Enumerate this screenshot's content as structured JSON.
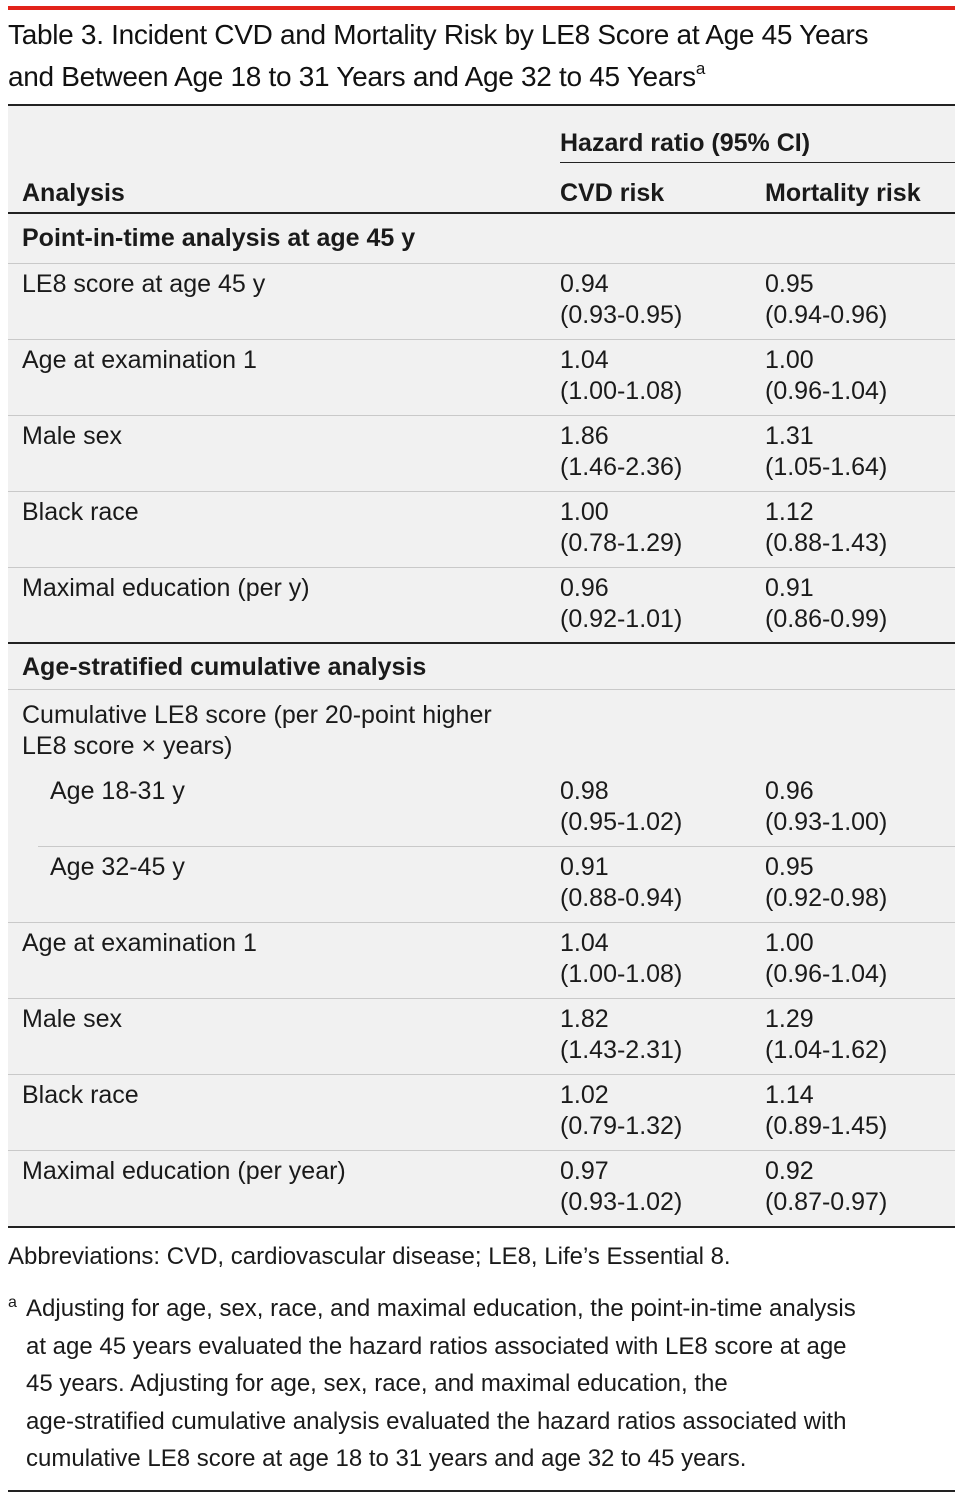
{
  "title": {
    "line1": "Table 3. Incident CVD and Mortality Risk by LE8 Score at Age 45 Years",
    "line2": "and Between Age 18 to 31 Years and Age 32 to 45 Years",
    "sup": "a"
  },
  "header": {
    "group": "Hazard ratio (95% CI)",
    "analysis": "Analysis",
    "cvd": "CVD risk",
    "mortality": "Mortality risk"
  },
  "sections": {
    "point_in_time": {
      "label": "Point-in-time analysis at age 45 y",
      "rows": [
        {
          "label": "LE8 score at age 45 y",
          "cvd": "0.94",
          "cvd_ci": "(0.93-0.95)",
          "mort": "0.95",
          "mort_ci": "(0.94-0.96)"
        },
        {
          "label": "Age at examination 1",
          "cvd": "1.04",
          "cvd_ci": "(1.00-1.08)",
          "mort": "1.00",
          "mort_ci": "(0.96-1.04)"
        },
        {
          "label": "Male sex",
          "cvd": "1.86",
          "cvd_ci": "(1.46-2.36)",
          "mort": "1.31",
          "mort_ci": "(1.05-1.64)"
        },
        {
          "label": "Black race",
          "cvd": "1.00",
          "cvd_ci": "(0.78-1.29)",
          "mort": "1.12",
          "mort_ci": "(0.88-1.43)"
        },
        {
          "label": "Maximal education (per y)",
          "cvd": "0.96",
          "cvd_ci": "(0.92-1.01)",
          "mort": "0.91",
          "mort_ci": "(0.86-0.99)"
        }
      ]
    },
    "age_stratified": {
      "label": "Age-stratified cumulative analysis",
      "cumulative_line1": "Cumulative LE8 score (per 20-point higher",
      "cumulative_line2": "LE8 score × years)",
      "rows": [
        {
          "label": "Age 18-31 y",
          "cvd": "0.98",
          "cvd_ci": "(0.95-1.02)",
          "mort": "0.96",
          "mort_ci": "(0.93-1.00)"
        },
        {
          "label": "Age 32-45 y",
          "cvd": "0.91",
          "cvd_ci": "(0.88-0.94)",
          "mort": "0.95",
          "mort_ci": "(0.92-0.98)"
        },
        {
          "label": "Age at examination 1",
          "cvd": "1.04",
          "cvd_ci": "(1.00-1.08)",
          "mort": "1.00",
          "mort_ci": "(0.96-1.04)"
        },
        {
          "label": "Male sex",
          "cvd": "1.82",
          "cvd_ci": "(1.43-2.31)",
          "mort": "1.29",
          "mort_ci": "(1.04-1.62)"
        },
        {
          "label": "Black race",
          "cvd": "1.02",
          "cvd_ci": "(0.79-1.32)",
          "mort": "1.14",
          "mort_ci": "(0.89-1.45)"
        },
        {
          "label": "Maximal education (per year)",
          "cvd": "0.97",
          "cvd_ci": "(0.93-1.02)",
          "mort": "0.92",
          "mort_ci": "(0.87-0.97)"
        }
      ]
    }
  },
  "abbreviations": "Abbreviations: CVD, cardiovascular disease; LE8, Life’s Essential 8.",
  "footnote": {
    "mark": "a",
    "line1": "Adjusting for age, sex, race, and maximal education, the point-in-time analysis",
    "line2": "at age 45 years evaluated the hazard ratios associated with LE8 score at age",
    "line3": "45 years. Adjusting for age, sex, race, and maximal education, the",
    "line4": "age-stratified cumulative analysis evaluated the hazard ratios associated with",
    "line5": "cumulative LE8 score at age 18 to 31 years and age 32 to 45 years."
  }
}
